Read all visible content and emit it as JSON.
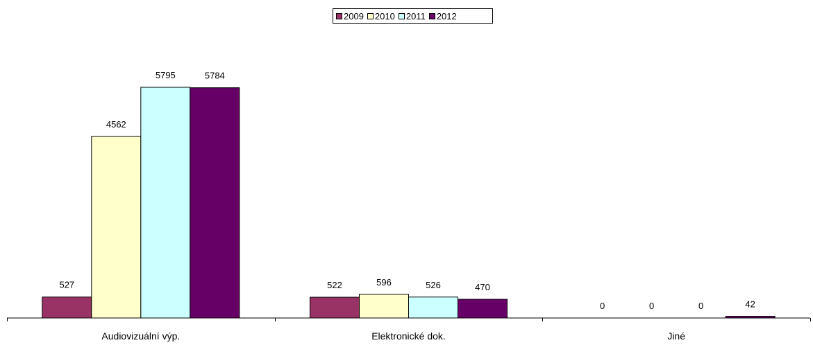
{
  "chart_data": {
    "type": "bar",
    "title": "",
    "xlabel": "",
    "ylabel": "",
    "categories": [
      "Audiovizuální výp.",
      "Elektronické dok.",
      "Jiné"
    ],
    "series": [
      {
        "name": "2009",
        "values": [
          527,
          522,
          0
        ],
        "color": "#993366"
      },
      {
        "name": "2010",
        "values": [
          4562,
          596,
          0
        ],
        "color": "#FFFFCC"
      },
      {
        "name": "2011",
        "values": [
          5795,
          526,
          0
        ],
        "color": "#CCFFFF"
      },
      {
        "name": "2012",
        "values": [
          5784,
          470,
          42
        ],
        "color": "#660066"
      }
    ],
    "ylim": [
      0,
      5795
    ],
    "grid": false,
    "legend": "top-center",
    "data_labels": true
  }
}
